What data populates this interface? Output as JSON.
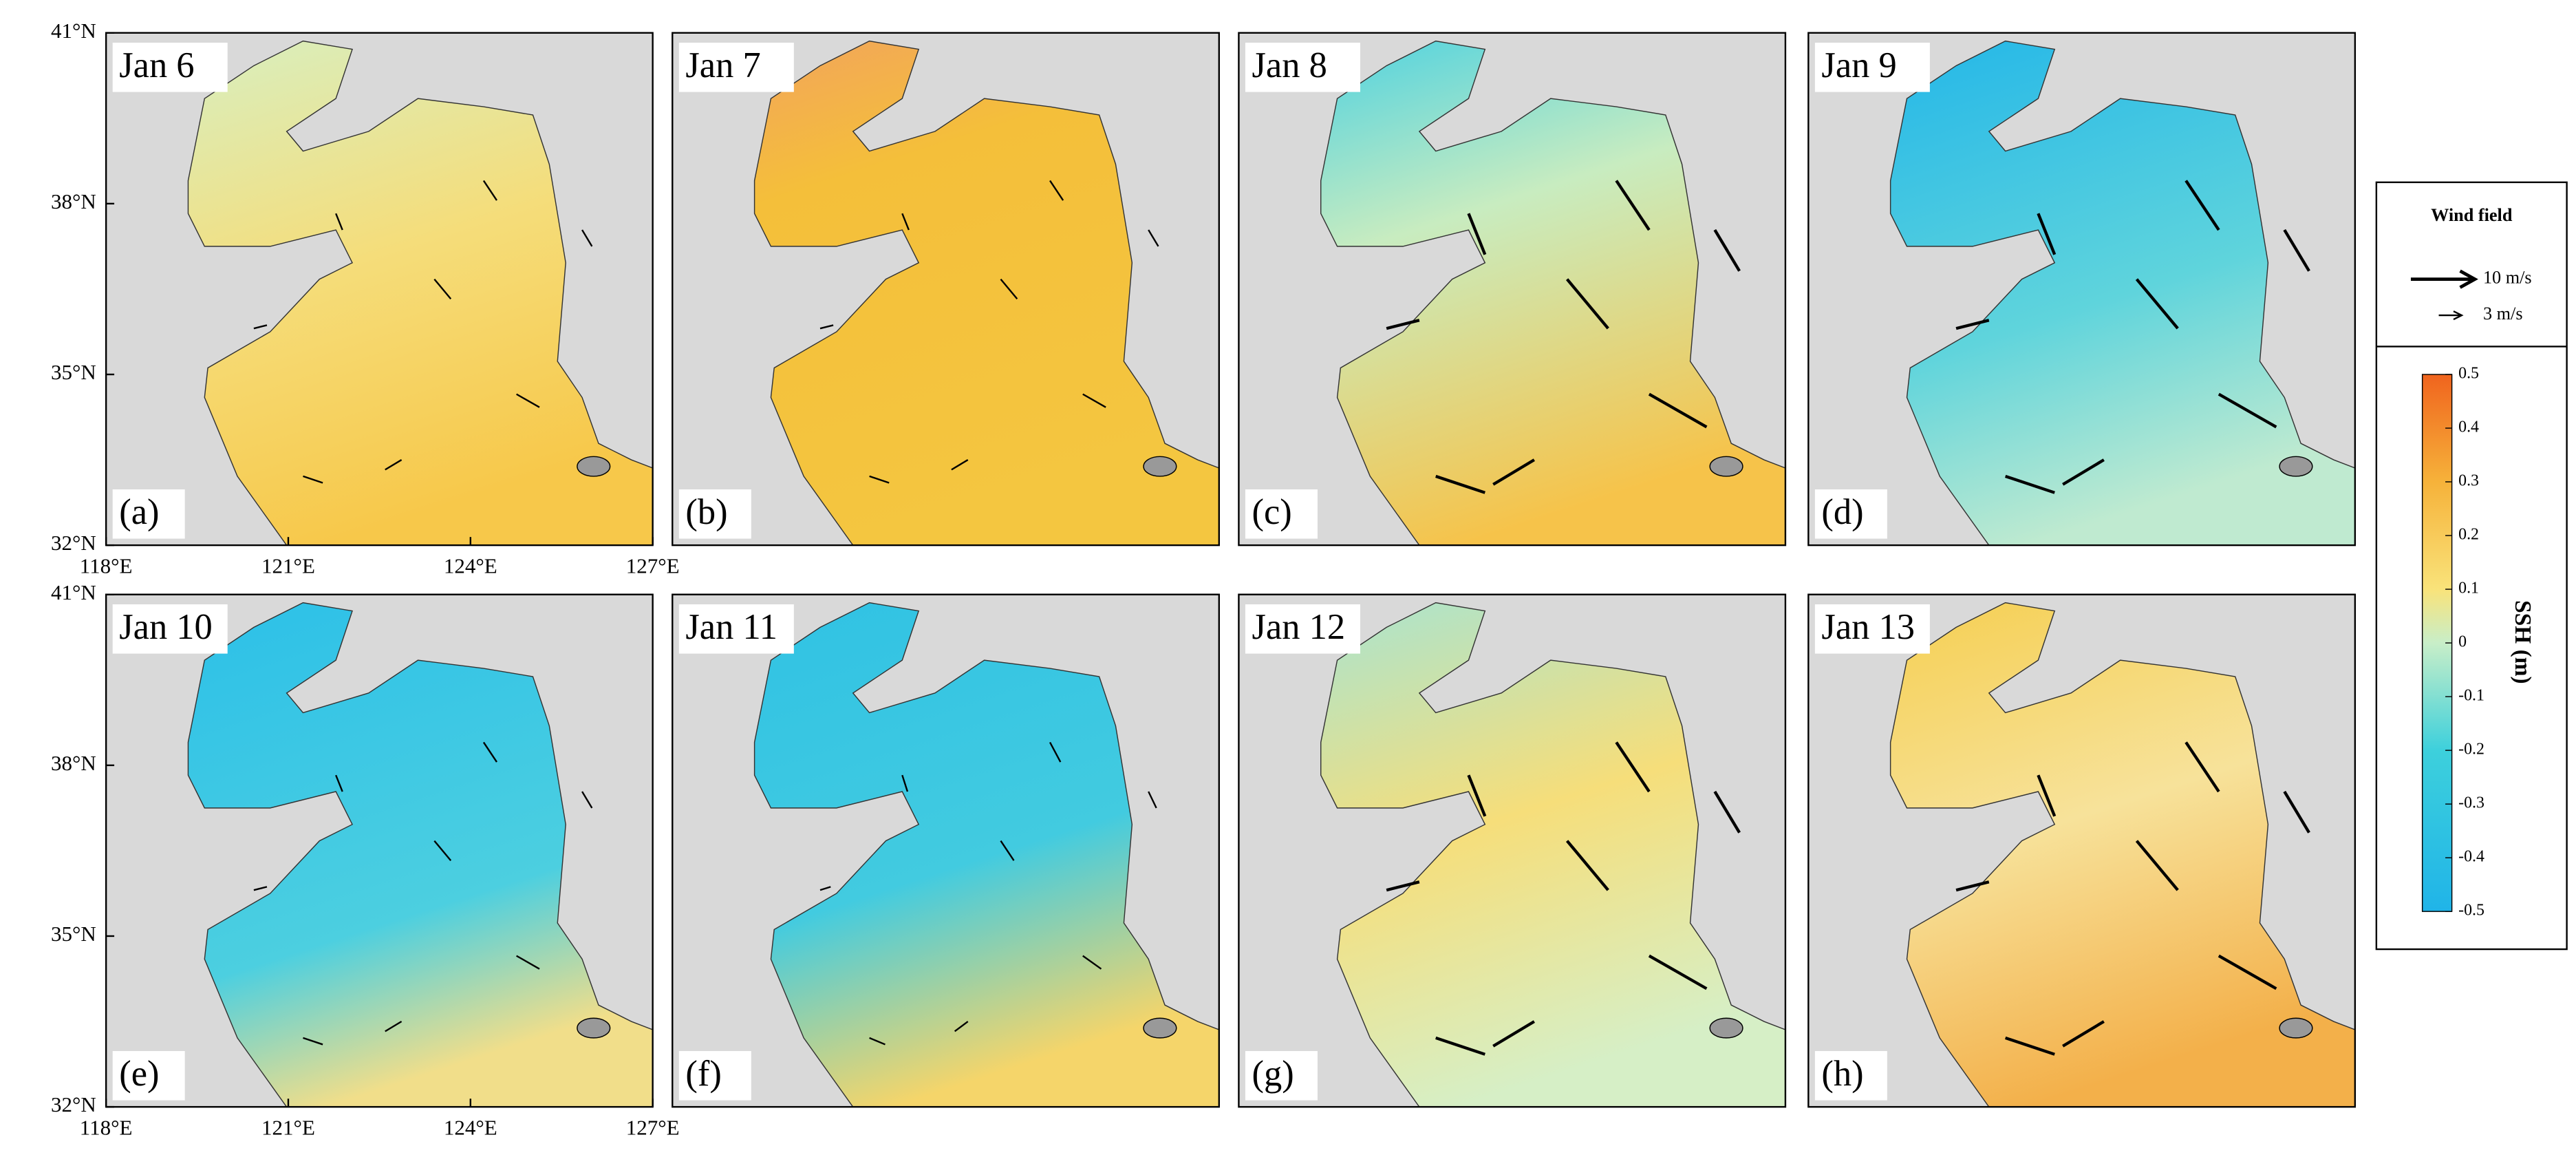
{
  "panels": [
    {
      "date": "Jan 6",
      "label": "(a)"
    },
    {
      "date": "Jan 7",
      "label": "(b)"
    },
    {
      "date": "Jan 8",
      "label": "(c)"
    },
    {
      "date": "Jan 9",
      "label": "(d)"
    },
    {
      "date": "Jan 10",
      "label": "(e)"
    },
    {
      "date": "Jan 11",
      "label": "(f)"
    },
    {
      "date": "Jan 12",
      "label": "(g)"
    },
    {
      "date": "Jan 13",
      "label": "(h)"
    }
  ],
  "axes": {
    "y_labels": [
      "41°N",
      "38°N",
      "35°N",
      "32°N"
    ],
    "x_labels": [
      "118°E",
      "121°E",
      "124°E",
      "127°E"
    ]
  },
  "legend": {
    "title": "Wind field",
    "arrows": [
      {
        "label": "10 m/s"
      },
      {
        "label": "3 m/s"
      }
    ]
  },
  "colorbar": {
    "title": "SSH (m)",
    "ticks": [
      0.5,
      0.4,
      0.3,
      0.2,
      0.1,
      0,
      -0.1,
      -0.2,
      -0.3,
      -0.4,
      -0.5
    ]
  }
}
